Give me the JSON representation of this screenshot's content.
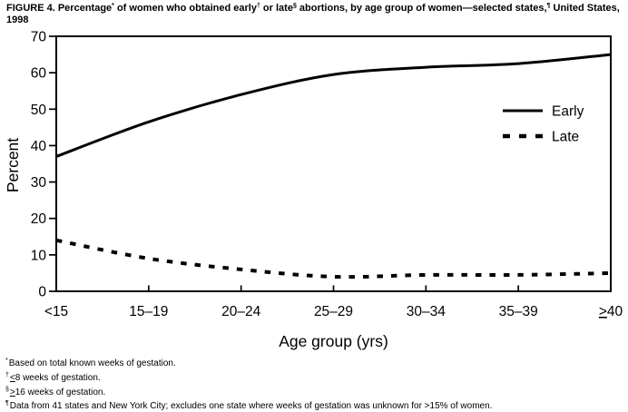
{
  "figure": {
    "title_parts": [
      {
        "text": "FIGURE 4. Percentage"
      },
      {
        "sup": "*"
      },
      {
        "text": " of women who obtained early"
      },
      {
        "sup": "†"
      },
      {
        "text": " or late"
      },
      {
        "sup": "§"
      },
      {
        "text": " abortions, by age group of women—selected states,"
      },
      {
        "sup": "¶"
      },
      {
        "text": " United States, 1998"
      }
    ]
  },
  "chart_data": {
    "type": "line",
    "categories": [
      "<15",
      "15–19",
      "20–24",
      "25–29",
      "30–34",
      "35–39",
      "≥40"
    ],
    "series": [
      {
        "name": "Early",
        "line_style": "solid",
        "values": [
          37,
          46.5,
          54,
          59.5,
          61.5,
          62.5,
          65
        ]
      },
      {
        "name": "Late",
        "line_style": "dashed",
        "values": [
          14,
          9,
          6,
          4,
          4.5,
          4.5,
          5
        ]
      }
    ],
    "xlabel": "Age group (yrs)",
    "ylabel": "Percent",
    "ylim": [
      0,
      70
    ],
    "yticks": [
      0,
      10,
      20,
      30,
      40,
      50,
      60,
      70
    ],
    "legend": {
      "position": "upper-right",
      "entries": [
        "Early",
        "Late"
      ]
    },
    "grid": false
  },
  "footnotes": [
    {
      "marker": "*",
      "text": "Based on total known weeks of gestation."
    },
    {
      "marker": "†",
      "text": "≤8 weeks of gestation."
    },
    {
      "marker": "§",
      "text": "≥16 weeks of gestation."
    },
    {
      "marker": "¶",
      "text": "Data from 41 states and New York City; excludes one state where weeks of gestation was unknown for >15% of women."
    }
  ],
  "colors": {
    "foreground": "#000000",
    "background": "#ffffff"
  }
}
